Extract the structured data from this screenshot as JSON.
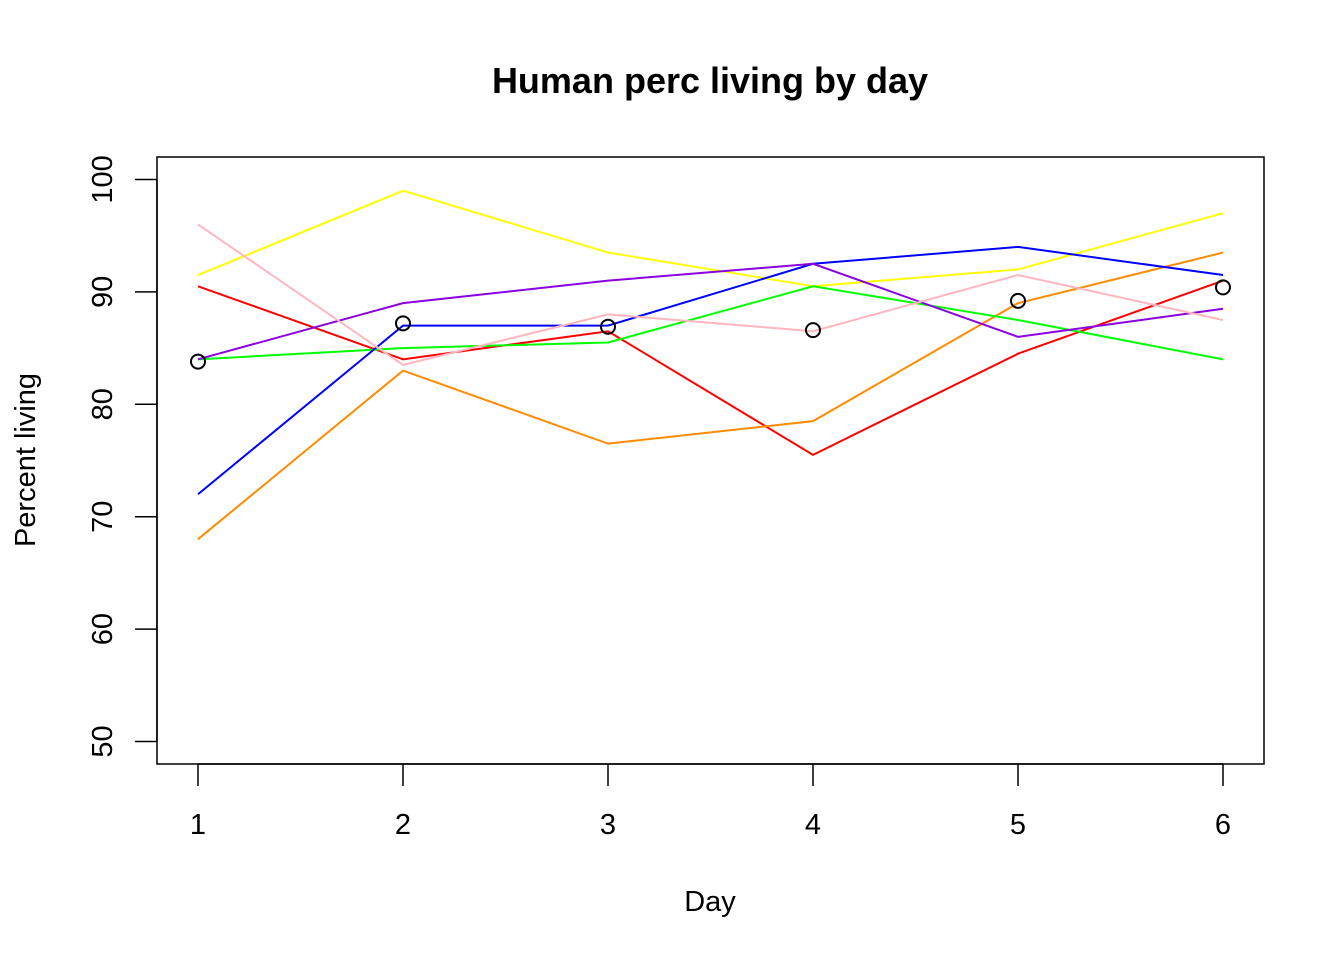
{
  "chart_data": {
    "type": "line",
    "title": "Human perc living by day",
    "xlabel": "Day",
    "ylabel": "Percent living",
    "x": [
      1,
      2,
      3,
      4,
      5,
      6
    ],
    "xlim": [
      0.8,
      6.2
    ],
    "ylim": [
      48,
      102
    ],
    "x_ticks": [
      1,
      2,
      3,
      4,
      5,
      6
    ],
    "y_ticks": [
      50,
      60,
      70,
      80,
      90,
      100
    ],
    "grid": false,
    "legend": "none",
    "series": [
      {
        "color": "#FF0000",
        "style": "line",
        "values": [
          90.5,
          84.0,
          86.5,
          75.5,
          84.5,
          91.0
        ]
      },
      {
        "color": "#FF8C00",
        "style": "line",
        "values": [
          68.0,
          83.0,
          76.5,
          78.5,
          89.0,
          93.5
        ]
      },
      {
        "color": "#FFFF00",
        "style": "line",
        "values": [
          91.5,
          99.0,
          93.5,
          90.5,
          92.0,
          97.0
        ]
      },
      {
        "color": "#00FF00",
        "style": "line",
        "values": [
          84.0,
          85.0,
          85.5,
          90.5,
          87.5,
          84.0
        ]
      },
      {
        "color": "#0000FF",
        "style": "line",
        "values": [
          72.0,
          87.0,
          87.0,
          92.5,
          94.0,
          91.5
        ]
      },
      {
        "color": "#8A00E0",
        "style": "line",
        "values": [
          84.0,
          89.0,
          91.0,
          92.5,
          86.0,
          88.5
        ]
      },
      {
        "color": "#FFB6C1",
        "style": "line",
        "values": [
          96.0,
          83.5,
          88.0,
          86.5,
          91.5,
          87.5
        ]
      },
      {
        "color": "#000000",
        "style": "points",
        "marker": "open-circle",
        "values": [
          83.8,
          87.2,
          86.9,
          86.6,
          89.2,
          90.4
        ]
      }
    ]
  }
}
